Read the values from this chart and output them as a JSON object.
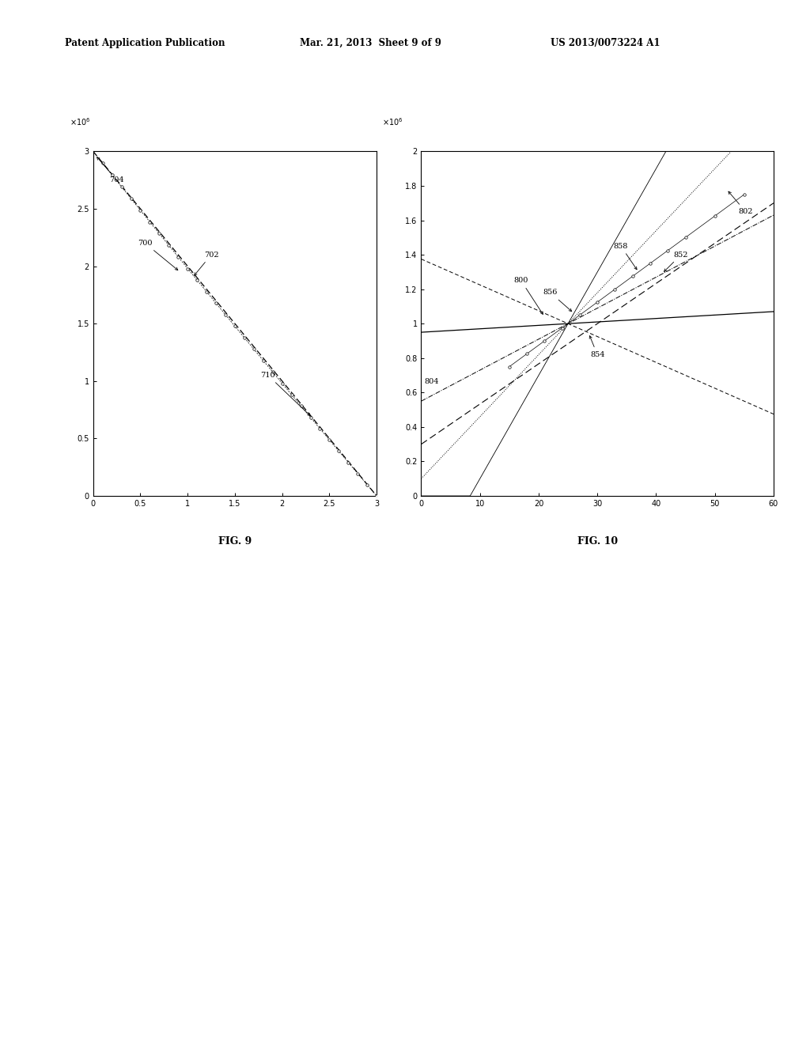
{
  "header_left": "Patent Application Publication",
  "header_mid": "Mar. 21, 2013  Sheet 9 of 9",
  "header_right": "US 2013/0073224 A1",
  "fig9": {
    "label": "FIG. 9",
    "xlim": [
      0,
      3
    ],
    "ylim": [
      0,
      3
    ],
    "xticks": [
      0,
      0.5,
      1.0,
      1.5,
      2.0,
      2.5,
      3.0
    ],
    "yticks": [
      0,
      0.5,
      1.0,
      1.5,
      2.0,
      2.5,
      3.0
    ],
    "ytick_labels": [
      "0",
      "0.5",
      "1",
      "1.5",
      "2",
      "2.5",
      "3"
    ],
    "xtick_labels": [
      "0",
      "0.5",
      "1",
      "1.5",
      "2",
      "2.5",
      "3"
    ]
  },
  "fig10": {
    "label": "FIG. 10",
    "xlim": [
      0,
      60
    ],
    "ylim": [
      0,
      2
    ],
    "xticks": [
      0,
      10,
      20,
      30,
      40,
      50,
      60
    ],
    "yticks": [
      0,
      0.2,
      0.4,
      0.6,
      0.8,
      1.0,
      1.2,
      1.4,
      1.6,
      1.8,
      2.0
    ],
    "ytick_labels": [
      "0",
      "0.2",
      "0.4",
      "0.6",
      "0.8",
      "1",
      "1.2",
      "1.4",
      "1.6",
      "1.8",
      "2"
    ],
    "xtick_labels": [
      "0",
      "10",
      "20",
      "30",
      "40",
      "50",
      "60"
    ]
  },
  "bg_color": "#ffffff",
  "line_color": "#000000",
  "border_color": "#000000"
}
